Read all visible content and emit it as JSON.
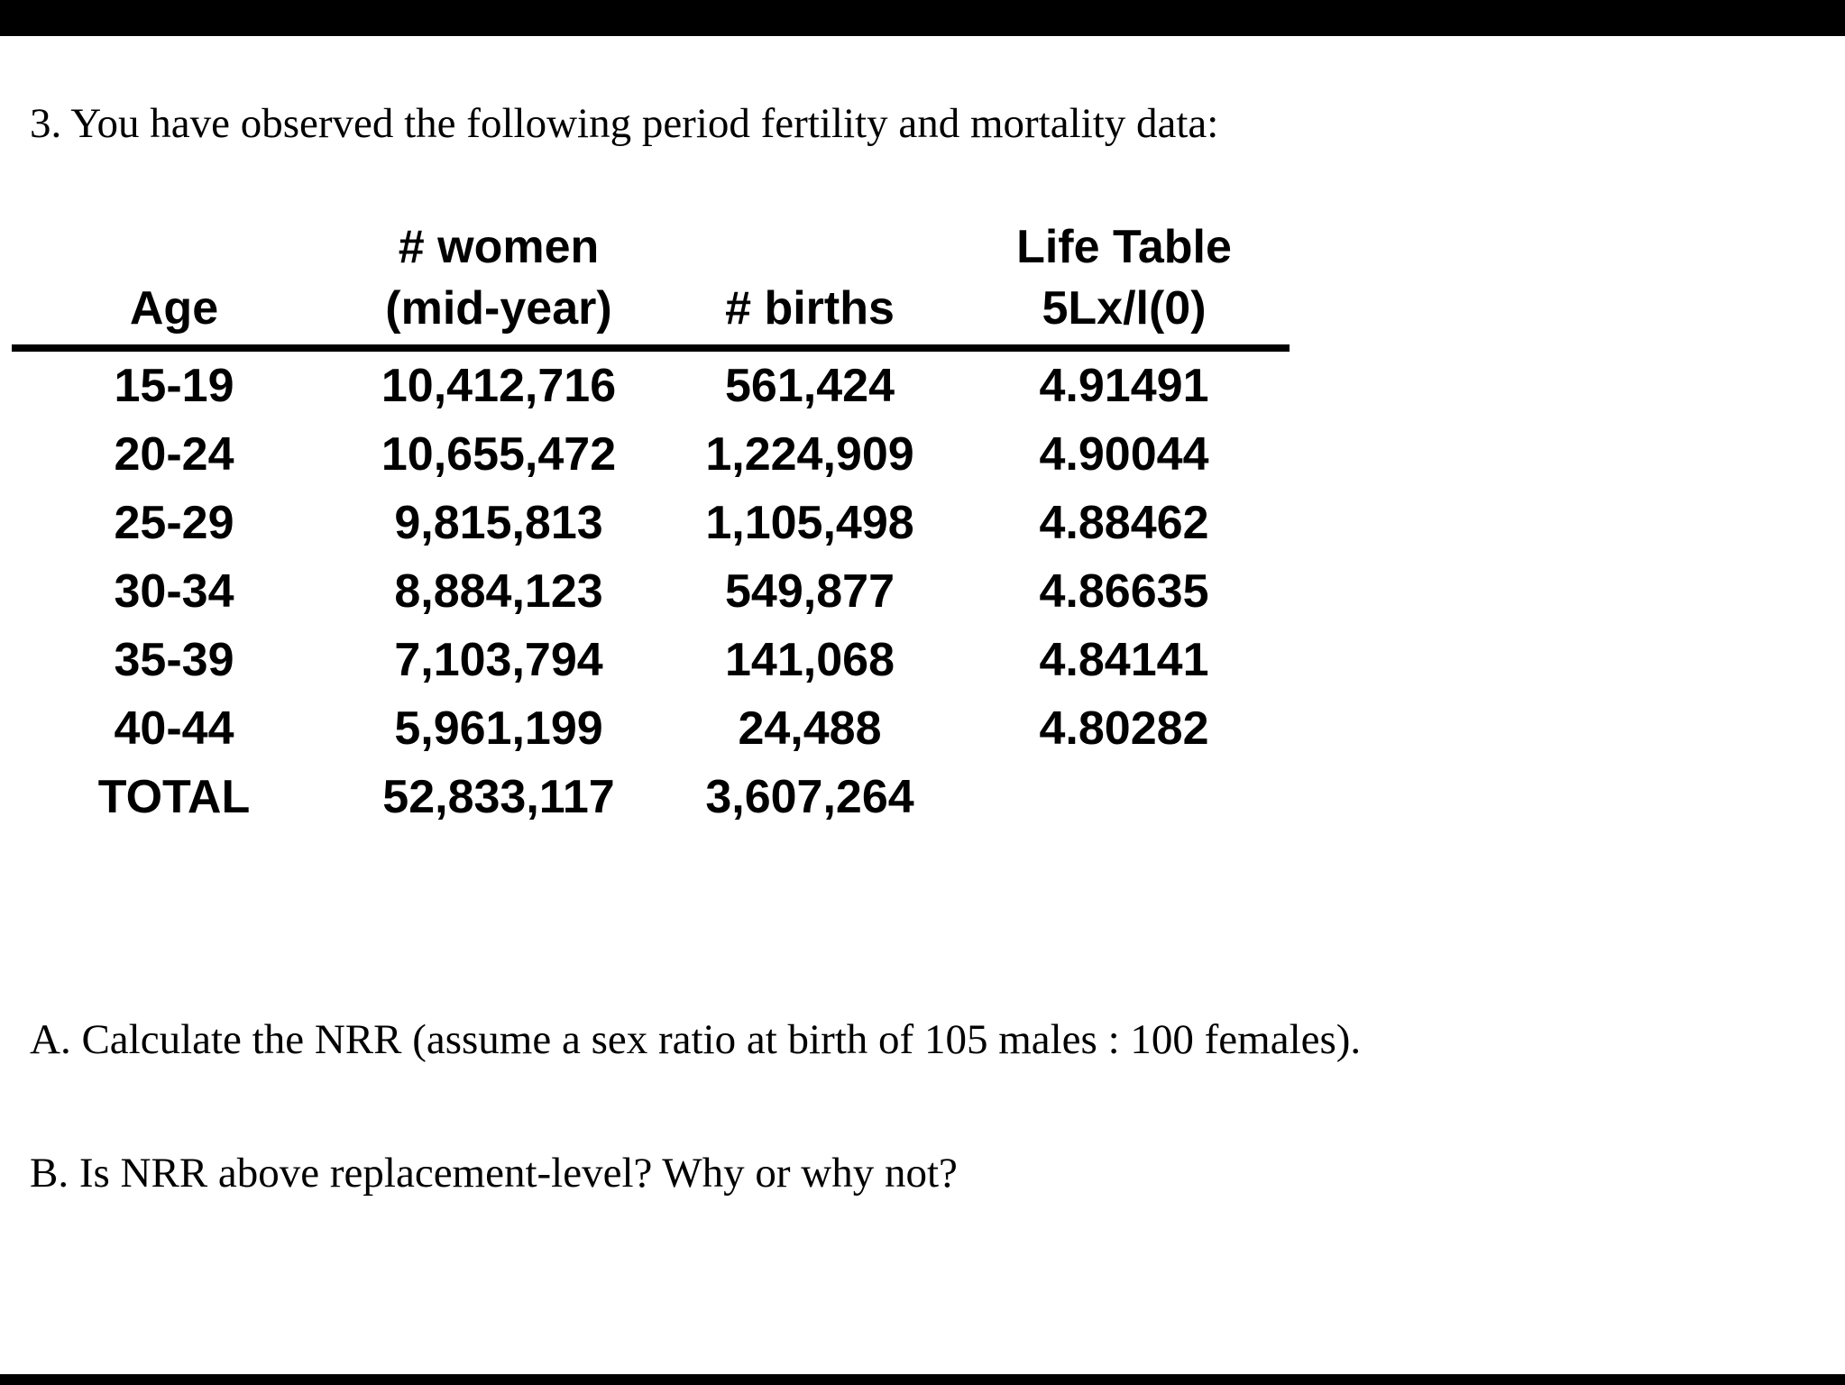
{
  "page": {
    "background_color": "#ffffff",
    "top_bar_color": "#000000",
    "bottom_bar_color": "#000000",
    "text_color": "#000000"
  },
  "document": {
    "title": "3. You have observed the following period fertility and mortality data:",
    "question_a": "A. Calculate the NRR (assume a sex ratio at birth of 105 males : 100 females).",
    "question_b": "B. Is NRR above replacement-level? Why or why not?",
    "table": {
      "headers": {
        "age": "Age",
        "women_line1": "# women",
        "women_line2": "(mid-year)",
        "births": "# births",
        "life_line1": "Life Table",
        "life_line2": "5Lx/l(0)"
      },
      "rows": [
        {
          "age": "15-19",
          "women": "10,412,716",
          "births": "561,424",
          "lx": "4.91491"
        },
        {
          "age": "20-24",
          "women": "10,655,472",
          "births": "1,224,909",
          "lx": "4.90044"
        },
        {
          "age": "25-29",
          "women": "9,815,813",
          "births": "1,105,498",
          "lx": "4.88462"
        },
        {
          "age": "30-34",
          "women": "8,884,123",
          "births": "549,877",
          "lx": "4.86635"
        },
        {
          "age": "35-39",
          "women": "7,103,794",
          "births": "141,068",
          "lx": "4.84141"
        },
        {
          "age": "40-44",
          "women": "5,961,199",
          "births": "24,488",
          "lx": "4.80282"
        },
        {
          "age": "TOTAL",
          "women": "52,833,117",
          "births": "3,607,264",
          "lx": ""
        }
      ]
    }
  }
}
